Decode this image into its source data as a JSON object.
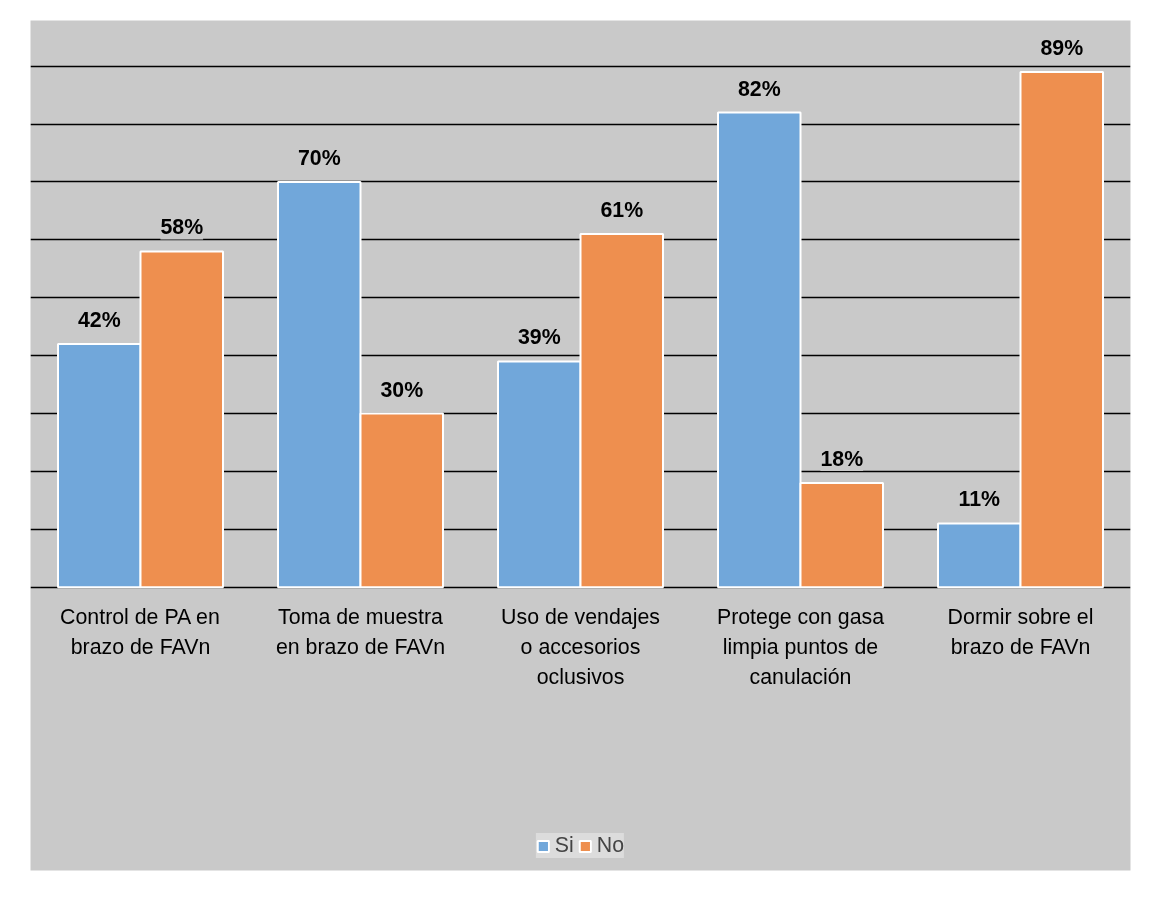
{
  "chart_data": {
    "type": "bar",
    "categories": [
      "Control de PA en brazo de FAVn",
      "Toma de muestra en brazo de FAVn",
      "Uso de vendajes o accesorios oclusivos",
      "Protege con gasa limpia puntos de canulación",
      "Dormir sobre el brazo de FAVn"
    ],
    "series": [
      {
        "name": "Si",
        "color": "#71a7da",
        "values": [
          42,
          70,
          39,
          82,
          11
        ],
        "value_labels": [
          "42%",
          "70%",
          "39%",
          "82%",
          "11%"
        ]
      },
      {
        "name": "No",
        "color": "#ee8f4f",
        "values": [
          58,
          30,
          61,
          18,
          89
        ],
        "value_labels": [
          "58%",
          "30%",
          "61%",
          "18%",
          "89%"
        ]
      }
    ],
    "grid": "y",
    "legend": "bottom",
    "tick_labels": "x"
  }
}
